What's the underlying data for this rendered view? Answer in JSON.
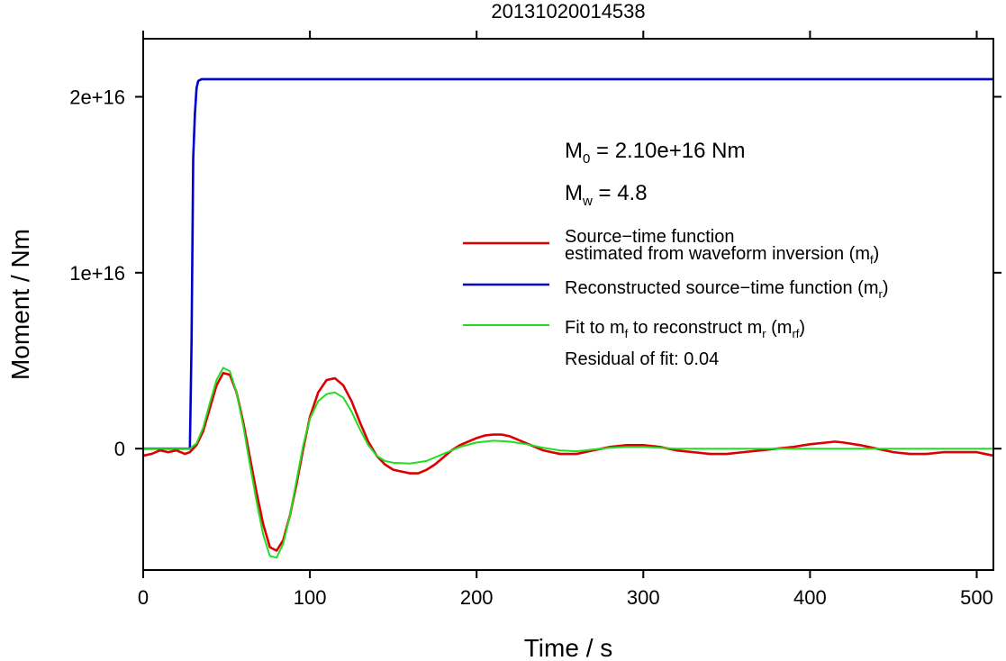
{
  "chart_data": {
    "type": "line",
    "title": "20131020014538",
    "xlabel": "Time / s",
    "ylabel": "Moment / Nm",
    "xlim": [
      0,
      510
    ],
    "ylim": [
      -6900000000000000.0,
      2.33e+16
    ],
    "xticks": [
      0,
      100,
      200,
      300,
      400,
      500
    ],
    "xtick_labels": [
      "0",
      "100",
      "200",
      "300",
      "400",
      "500"
    ],
    "yticks": [
      0,
      1e+16,
      2e+16
    ],
    "ytick_labels": [
      "0",
      "1e+16",
      "2e+16"
    ],
    "grid": false,
    "annotations": {
      "m0": {
        "prefix": "M",
        "sub": "0",
        "rest": " = 2.10e+16 Nm"
      },
      "mw": {
        "prefix": "M",
        "sub": "w",
        "rest": " = 4.8"
      },
      "residual": "Residual of fit: 0.04"
    },
    "legend": {
      "placement": "right",
      "entries": [
        {
          "line1": "Source−time function",
          "line2_pre": "estimated from waveform inversion (m",
          "sub": "f",
          "line2_post": ")",
          "color": "#dd0000"
        },
        {
          "pre": "Reconstructed source−time function (m",
          "sub": "r",
          "post": ")",
          "color": "#0000cc"
        },
        {
          "pre": "Fit to m",
          "sub1": "f",
          "mid": " to reconstruct m",
          "sub2": "r",
          "mid2": " (m",
          "sub3": "rf",
          "post": ")",
          "color": "#22dd22"
        }
      ]
    },
    "series": [
      {
        "color": "#dd0000",
        "points": [
          [
            0,
            -400000000000000.0
          ],
          [
            5,
            -300000000000000.0
          ],
          [
            10,
            -100000000000000.0
          ],
          [
            15,
            -200000000000000.0
          ],
          [
            20,
            -100000000000000.0
          ],
          [
            25,
            -300000000000000.0
          ],
          [
            28,
            -200000000000000.0
          ],
          [
            32,
            200000000000000.0
          ],
          [
            36,
            1000000000000000.0
          ],
          [
            40,
            2300000000000000.0
          ],
          [
            44,
            3600000000000000.0
          ],
          [
            48,
            4300000000000000.0
          ],
          [
            52,
            4200000000000000.0
          ],
          [
            56,
            3200000000000000.0
          ],
          [
            60,
            1500000000000000.0
          ],
          [
            64,
            -500000000000000.0
          ],
          [
            68,
            -2500000000000000.0
          ],
          [
            72,
            -4300000000000000.0
          ],
          [
            76,
            -5600000000000000.0
          ],
          [
            80,
            -5800000000000000.0
          ],
          [
            84,
            -5200000000000000.0
          ],
          [
            88,
            -3800000000000000.0
          ],
          [
            92,
            -2000000000000000.0
          ],
          [
            96,
            0
          ],
          [
            100,
            1800000000000000.0
          ],
          [
            105,
            3200000000000000.0
          ],
          [
            110,
            3900000000000000.0
          ],
          [
            115,
            4000000000000000.0
          ],
          [
            120,
            3600000000000000.0
          ],
          [
            125,
            2700000000000000.0
          ],
          [
            130,
            1500000000000000.0
          ],
          [
            135,
            400000000000000.0
          ],
          [
            140,
            -400000000000000.0
          ],
          [
            145,
            -900000000000000.0
          ],
          [
            150,
            -1200000000000000.0
          ],
          [
            155,
            -1300000000000000.0
          ],
          [
            160,
            -1400000000000000.0
          ],
          [
            165,
            -1400000000000000.0
          ],
          [
            170,
            -1200000000000000.0
          ],
          [
            175,
            -900000000000000.0
          ],
          [
            180,
            -500000000000000.0
          ],
          [
            185,
            -100000000000000.0
          ],
          [
            190,
            200000000000000.0
          ],
          [
            195,
            400000000000000.0
          ],
          [
            200,
            600000000000000.0
          ],
          [
            205,
            750000000000000.0
          ],
          [
            210,
            800000000000000.0
          ],
          [
            215,
            800000000000000.0
          ],
          [
            220,
            700000000000000.0
          ],
          [
            225,
            500000000000000.0
          ],
          [
            230,
            300000000000000.0
          ],
          [
            235,
            100000000000000.0
          ],
          [
            240,
            -100000000000000.0
          ],
          [
            245,
            -200000000000000.0
          ],
          [
            250,
            -300000000000000.0
          ],
          [
            255,
            -300000000000000.0
          ],
          [
            260,
            -300000000000000.0
          ],
          [
            265,
            -200000000000000.0
          ],
          [
            270,
            -100000000000000.0
          ],
          [
            275,
            0
          ],
          [
            280,
            100000000000000.0
          ],
          [
            285,
            150000000000000.0
          ],
          [
            290,
            200000000000000.0
          ],
          [
            295,
            200000000000000.0
          ],
          [
            300,
            200000000000000.0
          ],
          [
            305,
            150000000000000.0
          ],
          [
            310,
            100000000000000.0
          ],
          [
            315,
            0
          ],
          [
            320,
            -100000000000000.0
          ],
          [
            330,
            -200000000000000.0
          ],
          [
            340,
            -300000000000000.0
          ],
          [
            350,
            -300000000000000.0
          ],
          [
            360,
            -200000000000000.0
          ],
          [
            370,
            -100000000000000.0
          ],
          [
            380,
            0
          ],
          [
            390,
            100000000000000.0
          ],
          [
            400,
            250000000000000.0
          ],
          [
            410,
            350000000000000.0
          ],
          [
            415,
            400000000000000.0
          ],
          [
            420,
            350000000000000.0
          ],
          [
            430,
            200000000000000.0
          ],
          [
            440,
            0
          ],
          [
            445,
            -100000000000000.0
          ],
          [
            450,
            -200000000000000.0
          ],
          [
            460,
            -300000000000000.0
          ],
          [
            470,
            -300000000000000.0
          ],
          [
            480,
            -200000000000000.0
          ],
          [
            490,
            -200000000000000.0
          ],
          [
            500,
            -200000000000000.0
          ],
          [
            505,
            -300000000000000.0
          ],
          [
            510,
            -400000000000000.0
          ]
        ]
      },
      {
        "color": "#0000cc",
        "points": [
          [
            0,
            0
          ],
          [
            27,
            0
          ],
          [
            28,
            0
          ],
          [
            29,
            6000000000000000.0
          ],
          [
            30,
            1.65e+16
          ],
          [
            31,
            1.9e+16
          ],
          [
            32,
            2.05e+16
          ],
          [
            33,
            2.09e+16
          ],
          [
            35,
            2.1e+16
          ],
          [
            40,
            2.1e+16
          ],
          [
            510,
            2.1e+16
          ]
        ]
      },
      {
        "color": "#22dd22",
        "points": [
          [
            0,
            0
          ],
          [
            28,
            0
          ],
          [
            32,
            300000000000000.0
          ],
          [
            36,
            1200000000000000.0
          ],
          [
            40,
            2600000000000000.0
          ],
          [
            44,
            3900000000000000.0
          ],
          [
            48,
            4600000000000000.0
          ],
          [
            52,
            4400000000000000.0
          ],
          [
            56,
            3200000000000000.0
          ],
          [
            60,
            1300000000000000.0
          ],
          [
            64,
            -900000000000000.0
          ],
          [
            68,
            -3000000000000000.0
          ],
          [
            72,
            -4900000000000000.0
          ],
          [
            76,
            -6100000000000000.0
          ],
          [
            80,
            -6200000000000000.0
          ],
          [
            84,
            -5400000000000000.0
          ],
          [
            88,
            -3800000000000000.0
          ],
          [
            92,
            -1800000000000000.0
          ],
          [
            96,
            200000000000000.0
          ],
          [
            100,
            1700000000000000.0
          ],
          [
            105,
            2700000000000000.0
          ],
          [
            110,
            3100000000000000.0
          ],
          [
            115,
            3200000000000000.0
          ],
          [
            120,
            2900000000000000.0
          ],
          [
            125,
            2100000000000000.0
          ],
          [
            130,
            1100000000000000.0
          ],
          [
            135,
            200000000000000.0
          ],
          [
            140,
            -400000000000000.0
          ],
          [
            145,
            -700000000000000.0
          ],
          [
            150,
            -800000000000000.0
          ],
          [
            160,
            -850000000000000.0
          ],
          [
            170,
            -700000000000000.0
          ],
          [
            180,
            -300000000000000.0
          ],
          [
            190,
            100000000000000.0
          ],
          [
            200,
            350000000000000.0
          ],
          [
            210,
            450000000000000.0
          ],
          [
            220,
            400000000000000.0
          ],
          [
            230,
            250000000000000.0
          ],
          [
            240,
            50000000000000.0
          ],
          [
            250,
            -100000000000000.0
          ],
          [
            260,
            -150000000000000.0
          ],
          [
            270,
            -50000000000000.0
          ],
          [
            280,
            50000000000000.0
          ],
          [
            290,
            100000000000000.0
          ],
          [
            300,
            100000000000000.0
          ],
          [
            310,
            50000000000000.0
          ],
          [
            320,
            0
          ],
          [
            340,
            0
          ],
          [
            510,
            0
          ]
        ]
      }
    ]
  }
}
